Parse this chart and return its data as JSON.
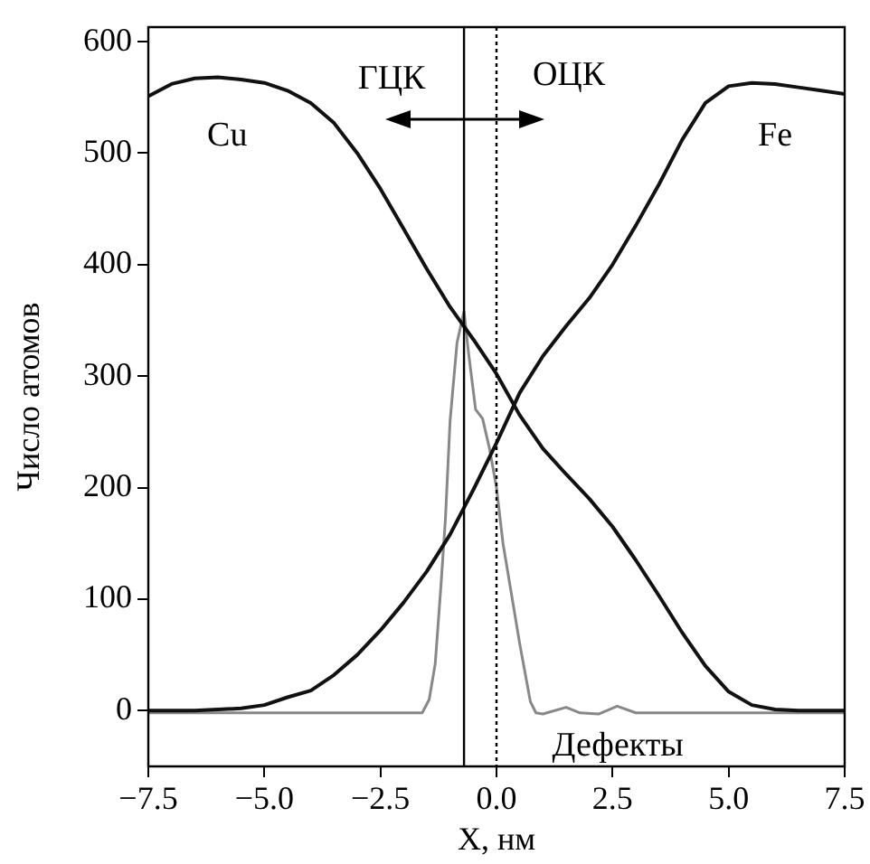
{
  "chart_data": {
    "type": "line",
    "xlabel": "X, нм",
    "ylabel": "Число атомов",
    "xlim": [
      -7.5,
      7.5
    ],
    "xticks": [
      {
        "value": -7.5,
        "label": "−7.5"
      },
      {
        "value": -5,
        "label": "−5.0"
      },
      {
        "value": -2.5,
        "label": "−2.5"
      },
      {
        "value": 0,
        "label": "0.0"
      },
      {
        "value": 2.5,
        "label": "2.5"
      },
      {
        "value": 5,
        "label": "5.0"
      },
      {
        "value": 7.5,
        "label": "7.5"
      }
    ],
    "ylim": [
      -50,
      613
    ],
    "yticks": [
      0,
      100,
      200,
      300,
      400,
      500,
      600
    ],
    "grid": false,
    "legend": false,
    "marker": "none",
    "annotations": [
      "ГЦК",
      {
        "text": "ОЦК",
        "x": 0,
        "y": 535
      }
    ],
    "ref_lines": [
      {
        "axis": "x",
        "value": -0.7,
        "color": "#000000",
        "line_style": "solid"
      },
      {
        "axis": "x",
        "value": 0,
        "color": "#000000",
        "line_style": "dotted"
      }
    ],
    "series": [
      {
        "name": "Cu",
        "color": "#111111",
        "x": [
          -7.5,
          -7,
          -6.5,
          -6,
          -5.5,
          -5,
          -4.5,
          -4,
          -3.5,
          -3,
          -2.5,
          -2,
          -1.5,
          -1,
          -0.5,
          0,
          0.5,
          1,
          1.5,
          2,
          2.5,
          3,
          3.5,
          4,
          4.5,
          5,
          5.5,
          6,
          6.5,
          7.5
        ],
        "values": [
          551,
          562,
          567,
          568,
          566,
          563,
          556,
          545,
          527,
          500,
          468,
          432,
          396,
          362,
          333,
          302,
          265,
          235,
          212,
          190,
          165,
          135,
          103,
          70,
          40,
          17,
          5,
          1,
          0,
          0
        ]
      },
      {
        "name": "Fe",
        "color": "#111111",
        "x": [
          -7.5,
          -6.5,
          -6,
          -5.5,
          -5,
          -4.5,
          -4,
          -3.5,
          -3,
          -2.5,
          -2,
          -1.5,
          -1,
          -0.5,
          0,
          0.5,
          1,
          1.5,
          2,
          2.5,
          3,
          3.5,
          4,
          4.5,
          5,
          5.5,
          6,
          6.5,
          7,
          7.5
        ],
        "values": [
          0,
          0,
          1,
          2,
          5,
          12,
          18,
          32,
          50,
          72,
          97,
          125,
          158,
          198,
          240,
          285,
          318,
          345,
          370,
          400,
          435,
          472,
          512,
          545,
          560,
          563,
          562,
          559,
          556,
          553
        ]
      },
      {
        "name": "Дефекты",
        "color": "#888888",
        "x": [
          -7.5,
          -2,
          -1.6,
          -1.45,
          -1.32,
          -1.2,
          -1.1,
          -1,
          -0.85,
          -0.7,
          -0.6,
          -0.45,
          -0.3,
          -0.15,
          0,
          0.14,
          0.3,
          0.5,
          0.73,
          0.85,
          1,
          1.5,
          1.8,
          2.2,
          2.6,
          3,
          7.5
        ],
        "values": [
          -2,
          -2,
          -2,
          10,
          42,
          110,
          172,
          260,
          330,
          358,
          320,
          270,
          262,
          235,
          200,
          150,
          110,
          60,
          8,
          -2,
          -3,
          3,
          -2,
          -3,
          4,
          -2,
          -2
        ]
      }
    ]
  }
}
